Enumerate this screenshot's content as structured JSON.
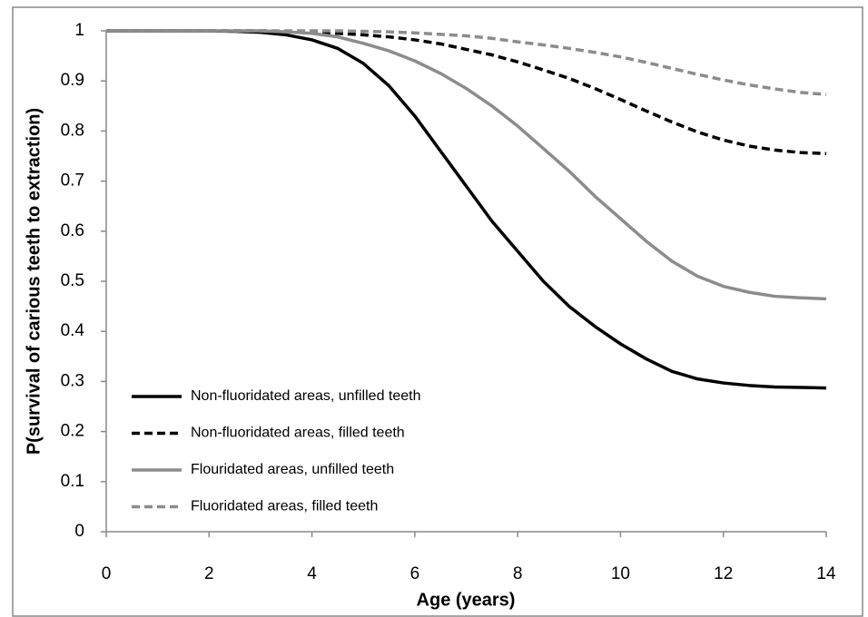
{
  "chart_data": {
    "type": "line",
    "xlabel": "Age (years)",
    "ylabel": "P(survival of carious teeth to extraction)",
    "x": [
      0,
      0.5,
      1,
      1.5,
      2,
      2.5,
      3,
      3.5,
      4,
      4.5,
      5,
      5.5,
      6,
      6.5,
      7,
      7.5,
      8,
      8.5,
      9,
      9.5,
      10,
      10.5,
      11,
      11.5,
      12,
      12.5,
      13,
      13.5,
      14
    ],
    "series": [
      {
        "name": "Non-fluoridated areas, unfilled teeth",
        "color": "#000000",
        "dashed": false,
        "values": [
          1,
          1,
          1,
          1,
          1,
          0.999,
          0.997,
          0.992,
          0.982,
          0.965,
          0.935,
          0.89,
          0.83,
          0.76,
          0.69,
          0.62,
          0.56,
          0.5,
          0.45,
          0.41,
          0.375,
          0.345,
          0.32,
          0.305,
          0.297,
          0.292,
          0.289,
          0.288,
          0.287
        ]
      },
      {
        "name": "Non-fluoridated areas, filled teeth",
        "color": "#000000",
        "dashed": true,
        "values": [
          1,
          1,
          1,
          1,
          1,
          1,
          1,
          0.999,
          0.998,
          0.995,
          0.992,
          0.988,
          0.982,
          0.974,
          0.963,
          0.952,
          0.938,
          0.922,
          0.905,
          0.885,
          0.863,
          0.84,
          0.818,
          0.798,
          0.782,
          0.77,
          0.762,
          0.757,
          0.755
        ]
      },
      {
        "name": "Flouridated areas, unfilled teeth",
        "color": "#8c8c8c",
        "dashed": false,
        "values": [
          1,
          1,
          1,
          1,
          1,
          1,
          1,
          0.998,
          0.995,
          0.988,
          0.975,
          0.96,
          0.94,
          0.915,
          0.885,
          0.85,
          0.81,
          0.765,
          0.72,
          0.67,
          0.625,
          0.58,
          0.54,
          0.51,
          0.49,
          0.478,
          0.47,
          0.467,
          0.465
        ]
      },
      {
        "name": "Fluoridated areas, filled teeth",
        "color": "#8c8c8c",
        "dashed": true,
        "values": [
          1,
          1,
          1,
          1,
          1,
          1,
          1,
          1,
          1,
          1,
          0.999,
          0.998,
          0.996,
          0.993,
          0.99,
          0.985,
          0.978,
          0.972,
          0.965,
          0.957,
          0.948,
          0.937,
          0.925,
          0.913,
          0.902,
          0.892,
          0.884,
          0.877,
          0.873
        ]
      }
    ],
    "xlim": [
      0,
      14
    ],
    "xticks": [
      0,
      2,
      4,
      6,
      8,
      10,
      12,
      14
    ],
    "ylim": [
      0,
      1
    ],
    "yticks": [
      0,
      0.1,
      0.2,
      0.3,
      0.4,
      0.5,
      0.6,
      0.7,
      0.8,
      0.9,
      1
    ],
    "grid": false
  }
}
